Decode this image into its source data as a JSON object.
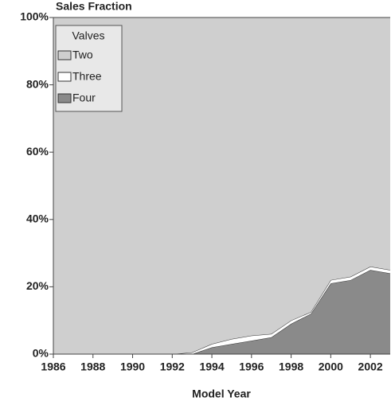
{
  "chart_data": {
    "type": "stacked_area",
    "y_axis_label": "Sales Fraction",
    "x_axis_label": "Model Year",
    "legend_title": "Valves",
    "legend": "top-left",
    "x": [
      1986,
      1987,
      1988,
      1989,
      1990,
      1991,
      1992,
      1993,
      1994,
      1995,
      1996,
      1997,
      1998,
      1999,
      2000,
      2001,
      2002,
      2003
    ],
    "series": [
      {
        "name": "Four",
        "color": "#8a8a8a",
        "values": [
          0,
          0,
          0,
          0,
          0,
          0,
          0,
          0,
          2,
          3,
          4,
          5,
          9,
          12,
          21,
          22,
          25,
          24
        ]
      },
      {
        "name": "Three",
        "color": "#ffffff",
        "values": [
          0,
          0,
          0,
          0,
          0,
          0,
          0,
          0.5,
          1,
          1.5,
          1.5,
          1,
          1,
          0.5,
          1,
          1,
          1,
          1
        ]
      },
      {
        "name": "Two",
        "color": "#cfcfcf",
        "values": [
          100,
          100,
          100,
          100,
          100,
          100,
          100,
          99.5,
          97,
          95.5,
          94.5,
          94,
          90,
          87.5,
          78,
          77,
          74,
          75
        ]
      }
    ],
    "xlim": [
      1986,
      2003
    ],
    "xticks": [
      1986,
      1988,
      1990,
      1992,
      1994,
      1996,
      1998,
      2000,
      2002
    ],
    "ylim": [
      0,
      100
    ],
    "yticks": [
      {
        "value": 0,
        "label": "0%"
      },
      {
        "value": 20,
        "label": "20%"
      },
      {
        "value": 40,
        "label": "40%"
      },
      {
        "value": 60,
        "label": "60%"
      },
      {
        "value": 80,
        "label": "80%"
      },
      {
        "value": 100,
        "label": "100%"
      }
    ]
  }
}
